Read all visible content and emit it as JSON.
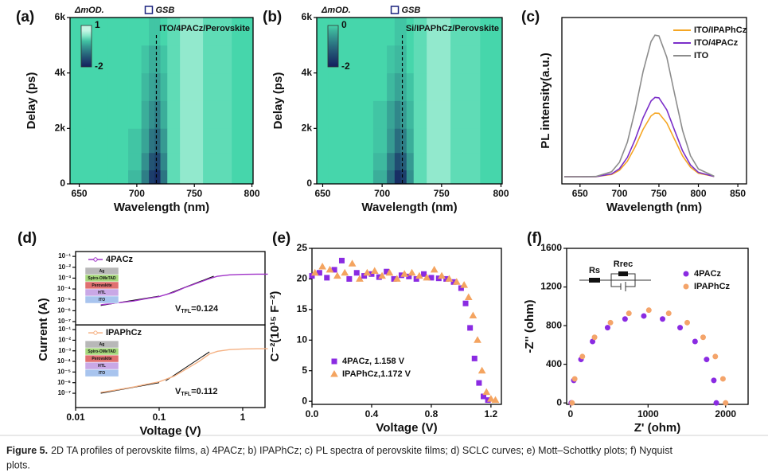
{
  "chart_data": [
    {
      "type": "heatmap",
      "panel": "(a)",
      "colorbar_label": "ΔmOD.",
      "marker_label": "GSB",
      "sample": "ITO/4PACz/Perovskite",
      "x_label": "Wavelength (nm)",
      "y_label": "Delay (ps)",
      "xlim": [
        642,
        801
      ],
      "xticks": [
        650,
        700,
        750,
        800
      ],
      "ylim": [
        0,
        6000
      ],
      "yticks": [
        0,
        {
          "value": 2000,
          "label": "2k"
        },
        {
          "value": 4000,
          "label": "4k"
        },
        {
          "value": 6000,
          "label": "6k"
        }
      ],
      "clim": [
        -2,
        1
      ],
      "cticks": [
        1,
        -2
      ],
      "marker_x": 717,
      "x": [
        645,
        665,
        685,
        700,
        708,
        713,
        718,
        723,
        730,
        745,
        770,
        795
      ],
      "y": [
        250,
        750,
        1500,
        2500,
        3500,
        4500,
        5500
      ],
      "z": [
        [
          0,
          0,
          0,
          -0.2,
          -0.8,
          -1.6,
          -1.8,
          -0.9,
          0.1,
          0.3,
          0.1,
          0
        ],
        [
          0,
          0,
          0,
          -0.1,
          -0.6,
          -1.3,
          -1.5,
          -0.7,
          0.1,
          0.3,
          0.1,
          0
        ],
        [
          0,
          0,
          0,
          -0.1,
          -0.4,
          -0.9,
          -1.1,
          -0.5,
          0.1,
          0.3,
          0.1,
          0
        ],
        [
          0,
          0,
          0,
          0,
          -0.3,
          -0.6,
          -0.8,
          -0.3,
          0.1,
          0.3,
          0.1,
          0
        ],
        [
          0,
          0,
          0,
          0,
          -0.2,
          -0.4,
          -0.5,
          -0.2,
          0.1,
          0.3,
          0.1,
          0
        ],
        [
          0,
          0,
          0,
          0,
          -0.1,
          -0.3,
          -0.3,
          -0.1,
          0.1,
          0.3,
          0.1,
          0
        ],
        [
          0,
          0,
          0,
          0,
          0,
          -0.1,
          -0.1,
          0,
          0.1,
          0.3,
          0.1,
          0
        ]
      ]
    },
    {
      "type": "heatmap",
      "panel": "(b)",
      "colorbar_label": "ΔmOD.",
      "marker_label": "GSB",
      "sample": "Si/IPAPhCz/Perovskite",
      "x_label": "Wavelength (nm)",
      "y_label": "Delay (ps)",
      "xlim": [
        645,
        801
      ],
      "xticks": [
        650,
        700,
        750,
        800
      ],
      "ylim": [
        0,
        6000
      ],
      "yticks": [
        0,
        {
          "value": 2000,
          "label": "2k"
        },
        {
          "value": 4000,
          "label": "4k"
        },
        {
          "value": 6000,
          "label": "6k"
        }
      ],
      "clim": [
        -2,
        0
      ],
      "cticks": [
        0,
        -2
      ],
      "marker_x": 717,
      "x": [
        645,
        665,
        685,
        700,
        708,
        713,
        718,
        723,
        730,
        745,
        770,
        795
      ],
      "y": [
        250,
        750,
        1500,
        2500,
        3500,
        4500,
        5500
      ],
      "z": [
        [
          0,
          0,
          0,
          -0.3,
          -1.0,
          -1.8,
          -1.6,
          -0.6,
          0.1,
          0.3,
          0.1,
          0
        ],
        [
          0,
          0,
          0,
          -0.2,
          -0.8,
          -1.4,
          -1.2,
          -0.5,
          0.1,
          0.3,
          0.1,
          0
        ],
        [
          0,
          0,
          0,
          -0.1,
          -0.5,
          -1.0,
          -0.8,
          -0.3,
          0.1,
          0.3,
          0.1,
          0
        ],
        [
          0,
          0,
          0,
          -0.1,
          -0.4,
          -0.7,
          -0.5,
          -0.2,
          0.1,
          0.3,
          0.1,
          0
        ],
        [
          0,
          0,
          0,
          0,
          -0.2,
          -0.4,
          -0.3,
          -0.1,
          0.1,
          0.3,
          0.1,
          0
        ],
        [
          0,
          0,
          0,
          0,
          -0.1,
          -0.2,
          -0.2,
          0,
          0.1,
          0.3,
          0.1,
          0
        ],
        [
          0,
          0,
          0,
          0,
          0,
          -0.1,
          -0.1,
          0,
          0.1,
          0.3,
          0.1,
          0
        ]
      ]
    },
    {
      "type": "line",
      "panel": "(c)",
      "x_label": "Wavelength (nm)",
      "y_label": "PL intensity(a.u.)",
      "xlim": [
        627,
        861
      ],
      "xticks": [
        650,
        700,
        750,
        800,
        850
      ],
      "ylim": [
        -0.05,
        1.12
      ],
      "legend": "upper right",
      "x": [
        630,
        650,
        670,
        690,
        700,
        710,
        720,
        730,
        740,
        745,
        750,
        760,
        770,
        780,
        790,
        800,
        820
      ],
      "series": [
        {
          "name": "ITO/IPAPhCz",
          "color": "#f5a623",
          "values": [
            0,
            0,
            0.001,
            0.016,
            0.046,
            0.109,
            0.212,
            0.334,
            0.428,
            0.448,
            0.446,
            0.378,
            0.261,
            0.146,
            0.067,
            0.025,
            0.002
          ]
        },
        {
          "name": "ITO/4PACz",
          "color": "#7b2fc9",
          "values": [
            0,
            0,
            0.001,
            0.02,
            0.057,
            0.136,
            0.264,
            0.416,
            0.533,
            0.558,
            0.555,
            0.47,
            0.324,
            0.182,
            0.083,
            0.031,
            0.002
          ]
        },
        {
          "name": "ITO",
          "color": "#8c8c8c",
          "values": [
            0,
            0,
            0.002,
            0.035,
            0.102,
            0.243,
            0.471,
            0.742,
            0.951,
            0.996,
            0.991,
            0.84,
            0.579,
            0.325,
            0.148,
            0.055,
            0.004
          ]
        }
      ]
    },
    {
      "type": "log_stack",
      "panel": "(d)",
      "x_label": "Voltage (V)",
      "y_label": "Current (A)",
      "log_x": true,
      "log_y": true,
      "xlim": [
        0.01,
        1.85
      ],
      "xticks": [
        0.01,
        0.1,
        1
      ],
      "subplots": [
        {
          "ylim": [
            5e-08,
            0.28
          ],
          "yticks": [
            {
              "value": 1e-07,
              "label": "10⁻⁷"
            },
            {
              "value": 1e-06,
              "label": "10⁻⁶"
            },
            {
              "value": 1e-05,
              "label": "10⁻⁵"
            },
            {
              "value": 0.0001,
              "label": "10⁻⁴"
            },
            {
              "value": 0.001,
              "label": "10⁻³"
            },
            {
              "value": 0.01,
              "label": "10⁻²"
            },
            {
              "value": 0.1,
              "label": "10⁻¹"
            }
          ],
          "series": [
            {
              "name": "4PACz",
              "color": "#a033c8",
              "x": [
                0.02,
                0.03,
                0.05,
                0.07,
                0.1,
                0.15,
                0.2,
                0.3,
                0.4,
                0.5,
                0.7,
                1,
                1.5,
                2
              ],
              "values": [
                3.5e-06,
                5e-06,
                8e-06,
                1.3e-05,
                2e-05,
                5e-05,
                0.00013,
                0.0004,
                0.0009,
                0.0015,
                0.002,
                0.0022,
                0.0023,
                0.0023
              ]
            }
          ],
          "fits": [
            {
              "x": [
                0.02,
                0.1
              ],
              "values": [
                3e-06,
                2.2e-05
              ]
            },
            {
              "x": [
                0.12,
                0.45
              ],
              "values": [
                3e-05,
                0.0015
              ]
            }
          ],
          "vtfl": {
            "main": "V",
            "sub": "TFL",
            "rest": "=0.124"
          },
          "device_layers": [
            {
              "name": "Ag",
              "color": "#b8b8b8"
            },
            {
              "name": "Spiro-OMeTAD",
              "color": "#a6d87c"
            },
            {
              "name": "Perovskite",
              "color": "#e07070"
            },
            {
              "name": "HTL",
              "color": "#c9a8e6"
            },
            {
              "name": "ITO",
              "color": "#a8c4ee"
            }
          ]
        },
        {
          "ylim": [
            4.5e-09,
            0.28
          ],
          "yticks": [
            {
              "value": 1e-07,
              "label": "10⁻⁷"
            },
            {
              "value": 1e-06,
              "label": "10⁻⁶"
            },
            {
              "value": 1e-05,
              "label": "10⁻⁵"
            },
            {
              "value": 0.0001,
              "label": "10⁻⁴"
            },
            {
              "value": 0.001,
              "label": "10⁻³"
            },
            {
              "value": 0.01,
              "label": "10⁻²"
            },
            {
              "value": 0.1,
              "label": "10⁻¹"
            }
          ],
          "series": [
            {
              "name": "IPAPhCz",
              "color": "#f5b183",
              "x": [
                0.02,
                0.03,
                0.05,
                0.07,
                0.1,
                0.15,
                0.2,
                0.3,
                0.4,
                0.5,
                0.7,
                1,
                1.5,
                2
              ],
              "values": [
                1.2e-07,
                2e-07,
                4e-07,
                7e-07,
                1.2e-06,
                4e-06,
                1.5e-05,
                0.0001,
                0.0005,
                0.0009,
                0.0013,
                0.0015,
                0.0016,
                0.0016
              ]
            }
          ],
          "fits": [
            {
              "x": [
                0.02,
                0.1
              ],
              "values": [
                1e-07,
                1e-06
              ]
            },
            {
              "x": [
                0.12,
                0.4
              ],
              "values": [
                1.5e-06,
                0.0008
              ]
            }
          ],
          "vtfl": {
            "main": "V",
            "sub": "TFL",
            "rest": "=0.112"
          },
          "device_layers": [
            {
              "name": "Ag",
              "color": "#b8b8b8"
            },
            {
              "name": "Spiro-OMeTAD",
              "color": "#a6d87c"
            },
            {
              "name": "Perovskite",
              "color": "#e07070"
            },
            {
              "name": "HTL",
              "color": "#c9a8e6"
            },
            {
              "name": "ITO",
              "color": "#a8c4ee"
            }
          ]
        }
      ]
    },
    {
      "type": "scatter",
      "panel": "(e)",
      "x_label": "Voltage (V)",
      "y_label": "C⁻²(10¹⁵ F⁻²)",
      "xlim": [
        0,
        1.27
      ],
      "xticks": [
        {
          "value": 0,
          "label": "0.0"
        },
        0.4,
        0.8,
        1.2
      ],
      "ylim": [
        -0.5,
        25
      ],
      "yticks": [
        0,
        5,
        10,
        15,
        20,
        25
      ],
      "legend": "lower left",
      "series": [
        {
          "name": "4PACz, 1.158 V",
          "color": "#8a2be2",
          "marker": "square",
          "x": [
            0.0,
            0.05,
            0.1,
            0.15,
            0.2,
            0.25,
            0.3,
            0.35,
            0.4,
            0.45,
            0.5,
            0.55,
            0.6,
            0.65,
            0.7,
            0.75,
            0.8,
            0.85,
            0.9,
            0.95,
            1.0,
            1.03,
            1.06,
            1.09,
            1.12,
            1.15,
            1.18
          ],
          "values": [
            20.5,
            21,
            20.2,
            21.5,
            23,
            20,
            21,
            20.5,
            20.8,
            20.3,
            21.2,
            20,
            20.6,
            20.4,
            20,
            20.8,
            20.2,
            20.1,
            20,
            19.5,
            18.5,
            16,
            12,
            7,
            3,
            0.8,
            0.2
          ]
        },
        {
          "name": "IPAPhCz,1.172 V",
          "color": "#f4a460",
          "marker": "triangle",
          "x": [
            0.02,
            0.07,
            0.12,
            0.17,
            0.22,
            0.27,
            0.32,
            0.37,
            0.42,
            0.47,
            0.52,
            0.57,
            0.62,
            0.67,
            0.72,
            0.77,
            0.82,
            0.87,
            0.92,
            0.97,
            1.02,
            1.05,
            1.08,
            1.11,
            1.14,
            1.17,
            1.2,
            1.23
          ],
          "values": [
            21,
            22,
            21.5,
            20.5,
            21,
            22.5,
            20,
            21,
            21.3,
            20.5,
            21,
            20,
            20.8,
            21,
            20.5,
            20.2,
            21.5,
            20.5,
            20,
            19.5,
            19,
            17,
            14,
            10,
            5,
            1.5,
            0.4,
            0.2
          ]
        }
      ]
    },
    {
      "type": "scatter",
      "panel": "(f)",
      "x_label": "Z' (ohm)",
      "y_label": "-Z'' (ohm)",
      "xlim": [
        -50,
        2290
      ],
      "xticks": [
        0,
        1000,
        2000
      ],
      "ylim": [
        -15,
        1600
      ],
      "yticks": [
        0,
        400,
        800,
        1200,
        1600
      ],
      "legend": "upper right",
      "circuit_labels": [
        "Rs",
        "Rrec"
      ],
      "series": [
        {
          "name": "4PACz",
          "color": "#8a2be2",
          "marker": "circle",
          "x": [
            10,
            42,
            135,
            284,
            478,
            703,
            945,
            1187,
            1413,
            1606,
            1755,
            1848,
            1880
          ],
          "values": [
            0,
            233,
            450,
            636,
            779,
            869,
            900,
            869,
            779,
            636,
            450,
            233,
            0
          ]
        },
        {
          "name": "IPAPhCz",
          "color": "#f4a46a",
          "marker": "circle",
          "x": [
            20,
            54,
            153,
            310,
            515,
            753,
            1010,
            1266,
            1505,
            1710,
            1867,
            1966,
            2000
          ],
          "values": [
            0,
            249,
            480,
            679,
            831,
            927,
            960,
            927,
            831,
            679,
            480,
            249,
            0
          ]
        }
      ]
    }
  ],
  "caption": {
    "label": "Figure 5.",
    "lines": [
      "2D TA profiles of perovskite films, a) 4PACz; b) IPAPhCz; c) PL spectra of perovskite films; d) SCLC curves; e) Mott–Schottky plots; f) Nyquist",
      "plots."
    ]
  }
}
